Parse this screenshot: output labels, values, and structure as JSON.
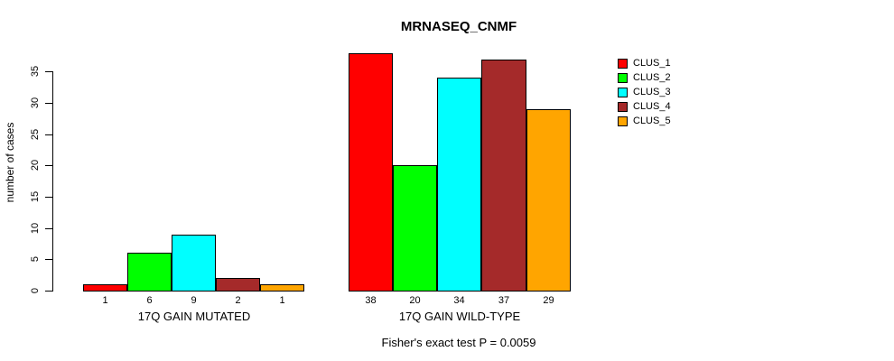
{
  "title": "MRNASEQ_CNMF",
  "footnote": "Fisher's exact test P = 0.0059",
  "y_axis": {
    "label": "number of cases",
    "ticks": [
      0,
      5,
      10,
      15,
      20,
      25,
      30,
      35
    ]
  },
  "legend": {
    "items": [
      {
        "label": "CLUS_1",
        "color": "#FF0000"
      },
      {
        "label": "CLUS_2",
        "color": "#00FF00"
      },
      {
        "label": "CLUS_3",
        "color": "#00FFFF"
      },
      {
        "label": "CLUS_4",
        "color": "#A52A2A"
      },
      {
        "label": "CLUS_5",
        "color": "#FFA500"
      }
    ]
  },
  "chart_data": {
    "type": "bar",
    "title": "MRNASEQ_CNMF",
    "ylabel": "number of cases",
    "ylim": [
      0,
      38
    ],
    "y_ticks": [
      0,
      5,
      10,
      15,
      20,
      25,
      30,
      35
    ],
    "grid": false,
    "legend_position": "right",
    "series_labels": [
      "CLUS_1",
      "CLUS_2",
      "CLUS_3",
      "CLUS_4",
      "CLUS_5"
    ],
    "series_colors": [
      "#FF0000",
      "#00FF00",
      "#00FFFF",
      "#A52A2A",
      "#FFA500"
    ],
    "groups": [
      {
        "label": "17Q GAIN MUTATED",
        "values": [
          1,
          6,
          9,
          2,
          1
        ]
      },
      {
        "label": "17Q GAIN WILD-TYPE",
        "values": [
          38,
          20,
          34,
          37,
          29
        ]
      }
    ],
    "bar_value_labels_shown": true,
    "annotation": "Fisher's exact test P = 0.0059"
  }
}
